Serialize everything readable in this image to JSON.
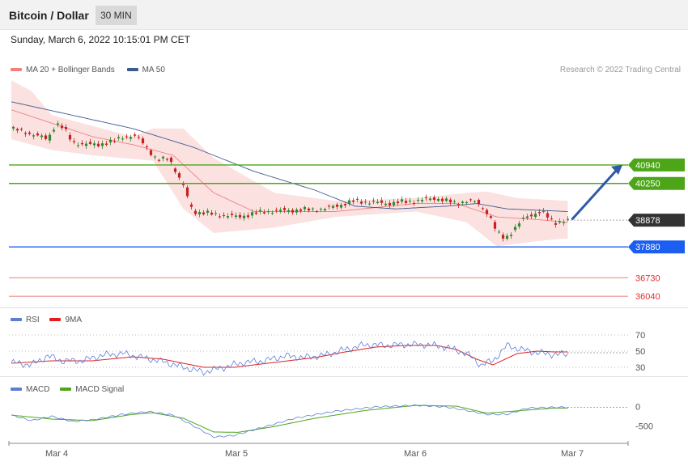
{
  "header": {
    "title": "Bitcoin / Dollar",
    "timeframe": "30 MIN"
  },
  "datetime": "Sunday, March 6, 2022 10:15:01 PM CET",
  "copyright": "Research © 2022 Trading Central",
  "colors": {
    "ma20": "#f08080",
    "ma50": "#3d5a8f",
    "band": "#fcdcdc",
    "resistance": "#4ca618",
    "support": "#1c5ef0",
    "support_far": "#e03030",
    "current": "#333333",
    "rsi": "#5b7dd6",
    "rsi_ma": "#e02020",
    "macd": "#5b7dd6",
    "signal": "#4ca618",
    "arrow": "#2e5aa8",
    "candle_up": "#2e8b2e",
    "candle_down": "#c82020"
  },
  "main_legend": [
    {
      "label": "MA 20 + Bollinger Bands",
      "color": "#f08080"
    },
    {
      "label": "MA 50",
      "color": "#3d5a8f"
    }
  ],
  "rsi_legend": [
    {
      "label": "RSI",
      "color": "#5b7dd6"
    },
    {
      "label": "9MA",
      "color": "#e02020"
    }
  ],
  "macd_legend": [
    {
      "label": "MACD",
      "color": "#5b7dd6"
    },
    {
      "label": "MACD Signal",
      "color": "#4ca618"
    }
  ],
  "chart_data": [
    {
      "type": "candlestick",
      "title": "Bitcoin / Dollar",
      "ylim": [
        35650,
        44200
      ],
      "x_labels": [
        "Mar 4",
        "Mar 5",
        "Mar 6",
        "Mar 7"
      ],
      "levels": [
        {
          "value": 40940,
          "label": "40940",
          "kind": "resistance",
          "style": "tag"
        },
        {
          "value": 40250,
          "label": "40250",
          "kind": "resistance",
          "style": "tag"
        },
        {
          "value": 38878,
          "label": "38878",
          "kind": "current",
          "style": "tag"
        },
        {
          "value": 37880,
          "label": "37880",
          "kind": "support",
          "style": "tag"
        },
        {
          "value": 36730,
          "label": "36730",
          "kind": "support_far",
          "style": "text"
        },
        {
          "value": 36040,
          "label": "36040",
          "kind": "support_far",
          "style": "text"
        }
      ],
      "close_anchors": [
        [
          0,
          42300
        ],
        [
          10,
          42100
        ],
        [
          18,
          41900
        ],
        [
          22,
          42500
        ],
        [
          26,
          42300
        ],
        [
          30,
          41800
        ],
        [
          36,
          41700
        ],
        [
          42,
          41700
        ],
        [
          50,
          41800
        ],
        [
          55,
          42000
        ],
        [
          62,
          42000
        ],
        [
          66,
          41700
        ],
        [
          72,
          41100
        ],
        [
          78,
          41200
        ],
        [
          82,
          40600
        ],
        [
          86,
          40000
        ],
        [
          88,
          39500
        ],
        [
          90,
          39200
        ],
        [
          100,
          39100
        ],
        [
          112,
          39000
        ],
        [
          125,
          39200
        ],
        [
          140,
          39250
        ],
        [
          155,
          39300
        ],
        [
          170,
          39600
        ],
        [
          185,
          39500
        ],
        [
          200,
          39600
        ],
        [
          210,
          39700
        ],
        [
          220,
          39500
        ],
        [
          225,
          39600
        ],
        [
          230,
          39550
        ],
        [
          236,
          39100
        ],
        [
          240,
          38400
        ],
        [
          244,
          38200
        ],
        [
          248,
          38500
        ],
        [
          254,
          39000
        ],
        [
          262,
          39200
        ],
        [
          268,
          38800
        ],
        [
          275,
          38850
        ]
      ],
      "ma20_anchors": [
        [
          0,
          43000
        ],
        [
          20,
          42500
        ],
        [
          40,
          42000
        ],
        [
          60,
          41700
        ],
        [
          80,
          41300
        ],
        [
          100,
          39900
        ],
        [
          120,
          39200
        ],
        [
          160,
          39200
        ],
        [
          200,
          39500
        ],
        [
          220,
          39500
        ],
        [
          240,
          39000
        ],
        [
          260,
          38900
        ],
        [
          275,
          38800
        ]
      ],
      "ma50_anchors": [
        [
          0,
          43300
        ],
        [
          30,
          42800
        ],
        [
          60,
          42300
        ],
        [
          90,
          41600
        ],
        [
          120,
          40700
        ],
        [
          150,
          40000
        ],
        [
          170,
          39400
        ],
        [
          190,
          39300
        ],
        [
          215,
          39400
        ],
        [
          230,
          39500
        ],
        [
          245,
          39300
        ],
        [
          275,
          39200
        ]
      ],
      "bb_upper_anchors": [
        [
          0,
          44100
        ],
        [
          10,
          43700
        ],
        [
          20,
          42800
        ],
        [
          40,
          42400
        ],
        [
          60,
          42000
        ],
        [
          70,
          42300
        ],
        [
          85,
          42300
        ],
        [
          100,
          41200
        ],
        [
          130,
          39900
        ],
        [
          160,
          39600
        ],
        [
          200,
          39700
        ],
        [
          225,
          39900
        ],
        [
          235,
          39950
        ],
        [
          250,
          39700
        ],
        [
          275,
          39600
        ]
      ],
      "bb_lower_anchors": [
        [
          0,
          41900
        ],
        [
          20,
          41500
        ],
        [
          40,
          41300
        ],
        [
          55,
          41200
        ],
        [
          70,
          41100
        ],
        [
          85,
          39300
        ],
        [
          100,
          38400
        ],
        [
          130,
          38600
        ],
        [
          160,
          39000
        ],
        [
          200,
          39200
        ],
        [
          225,
          38800
        ],
        [
          240,
          37900
        ],
        [
          260,
          38100
        ],
        [
          275,
          38200
        ]
      ],
      "projection": {
        "from": [
          277,
          38900
        ],
        "to": [
          302,
          40940
        ]
      }
    },
    {
      "type": "line",
      "title": "RSI",
      "ylim": [
        20,
        80
      ],
      "y_ticks": [
        70,
        50,
        30
      ],
      "series": [
        {
          "name": "RSI",
          "anchors": [
            [
              0,
              36
            ],
            [
              10,
              33
            ],
            [
              18,
              44
            ],
            [
              25,
              38
            ],
            [
              35,
              38
            ],
            [
              45,
              45
            ],
            [
              55,
              47
            ],
            [
              65,
              42
            ],
            [
              75,
              37
            ],
            [
              85,
              30
            ],
            [
              95,
              24
            ],
            [
              105,
              30
            ],
            [
              115,
              36
            ],
            [
              125,
              38
            ],
            [
              135,
              44
            ],
            [
              145,
              42
            ],
            [
              155,
              45
            ],
            [
              165,
              52
            ],
            [
              175,
              58
            ],
            [
              185,
              57
            ],
            [
              195,
              58
            ],
            [
              205,
              58
            ],
            [
              215,
              55
            ],
            [
              225,
              47
            ],
            [
              232,
              33
            ],
            [
              238,
              38
            ],
            [
              245,
              57
            ],
            [
              252,
              52
            ],
            [
              260,
              48
            ],
            [
              268,
              46
            ]
          ]
        },
        {
          "name": "9MA",
          "anchors": [
            [
              0,
              35
            ],
            [
              20,
              38
            ],
            [
              40,
              38
            ],
            [
              60,
              43
            ],
            [
              75,
              40
            ],
            [
              95,
              30
            ],
            [
              110,
              30
            ],
            [
              130,
              36
            ],
            [
              150,
              42
            ],
            [
              165,
              49
            ],
            [
              180,
              55
            ],
            [
              195,
              57
            ],
            [
              210,
              57
            ],
            [
              220,
              52
            ],
            [
              230,
              40
            ],
            [
              238,
              33
            ],
            [
              250,
              47
            ],
            [
              260,
              50
            ],
            [
              268,
              49
            ]
          ]
        }
      ]
    },
    {
      "type": "line",
      "title": "MACD",
      "ylim": [
        -900,
        300
      ],
      "y_ticks": [
        0,
        -500
      ],
      "series": [
        {
          "name": "MACD",
          "anchors": [
            [
              0,
              -220
            ],
            [
              10,
              -360
            ],
            [
              20,
              -250
            ],
            [
              30,
              -380
            ],
            [
              40,
              -340
            ],
            [
              55,
              -200
            ],
            [
              68,
              -130
            ],
            [
              80,
              -220
            ],
            [
              92,
              -550
            ],
            [
              100,
              -780
            ],
            [
              110,
              -740
            ],
            [
              125,
              -520
            ],
            [
              140,
              -300
            ],
            [
              160,
              -120
            ],
            [
              180,
              -10
            ],
            [
              200,
              30
            ],
            [
              215,
              -10
            ],
            [
              225,
              -100
            ],
            [
              235,
              -200
            ],
            [
              245,
              -200
            ],
            [
              255,
              -40
            ],
            [
              268,
              -20
            ]
          ]
        },
        {
          "name": "MACD Signal",
          "anchors": [
            [
              0,
              -220
            ],
            [
              20,
              -320
            ],
            [
              40,
              -360
            ],
            [
              60,
              -200
            ],
            [
              70,
              -160
            ],
            [
              85,
              -300
            ],
            [
              100,
              -650
            ],
            [
              112,
              -660
            ],
            [
              130,
              -510
            ],
            [
              150,
              -300
            ],
            [
              175,
              -100
            ],
            [
              200,
              30
            ],
            [
              220,
              10
            ],
            [
              235,
              -170
            ],
            [
              250,
              -110
            ],
            [
              268,
              -40
            ]
          ]
        }
      ]
    }
  ]
}
